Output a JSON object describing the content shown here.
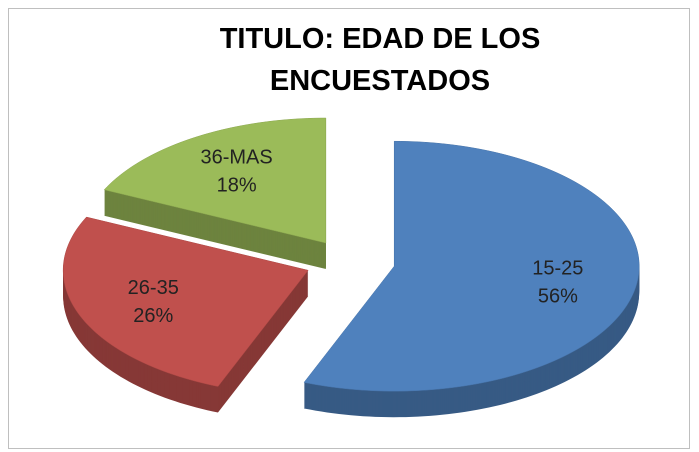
{
  "chart_data": {
    "type": "pie",
    "title": "TITULO: EDAD DE LOS ENCUESTADOS",
    "categories": [
      "15-25",
      "26-35",
      "36-MAS"
    ],
    "values": [
      56,
      26,
      18
    ],
    "value_labels": [
      "56%",
      "26%",
      "18%"
    ],
    "colors": [
      "#4f81bd",
      "#c0504d",
      "#9bbb59"
    ]
  }
}
